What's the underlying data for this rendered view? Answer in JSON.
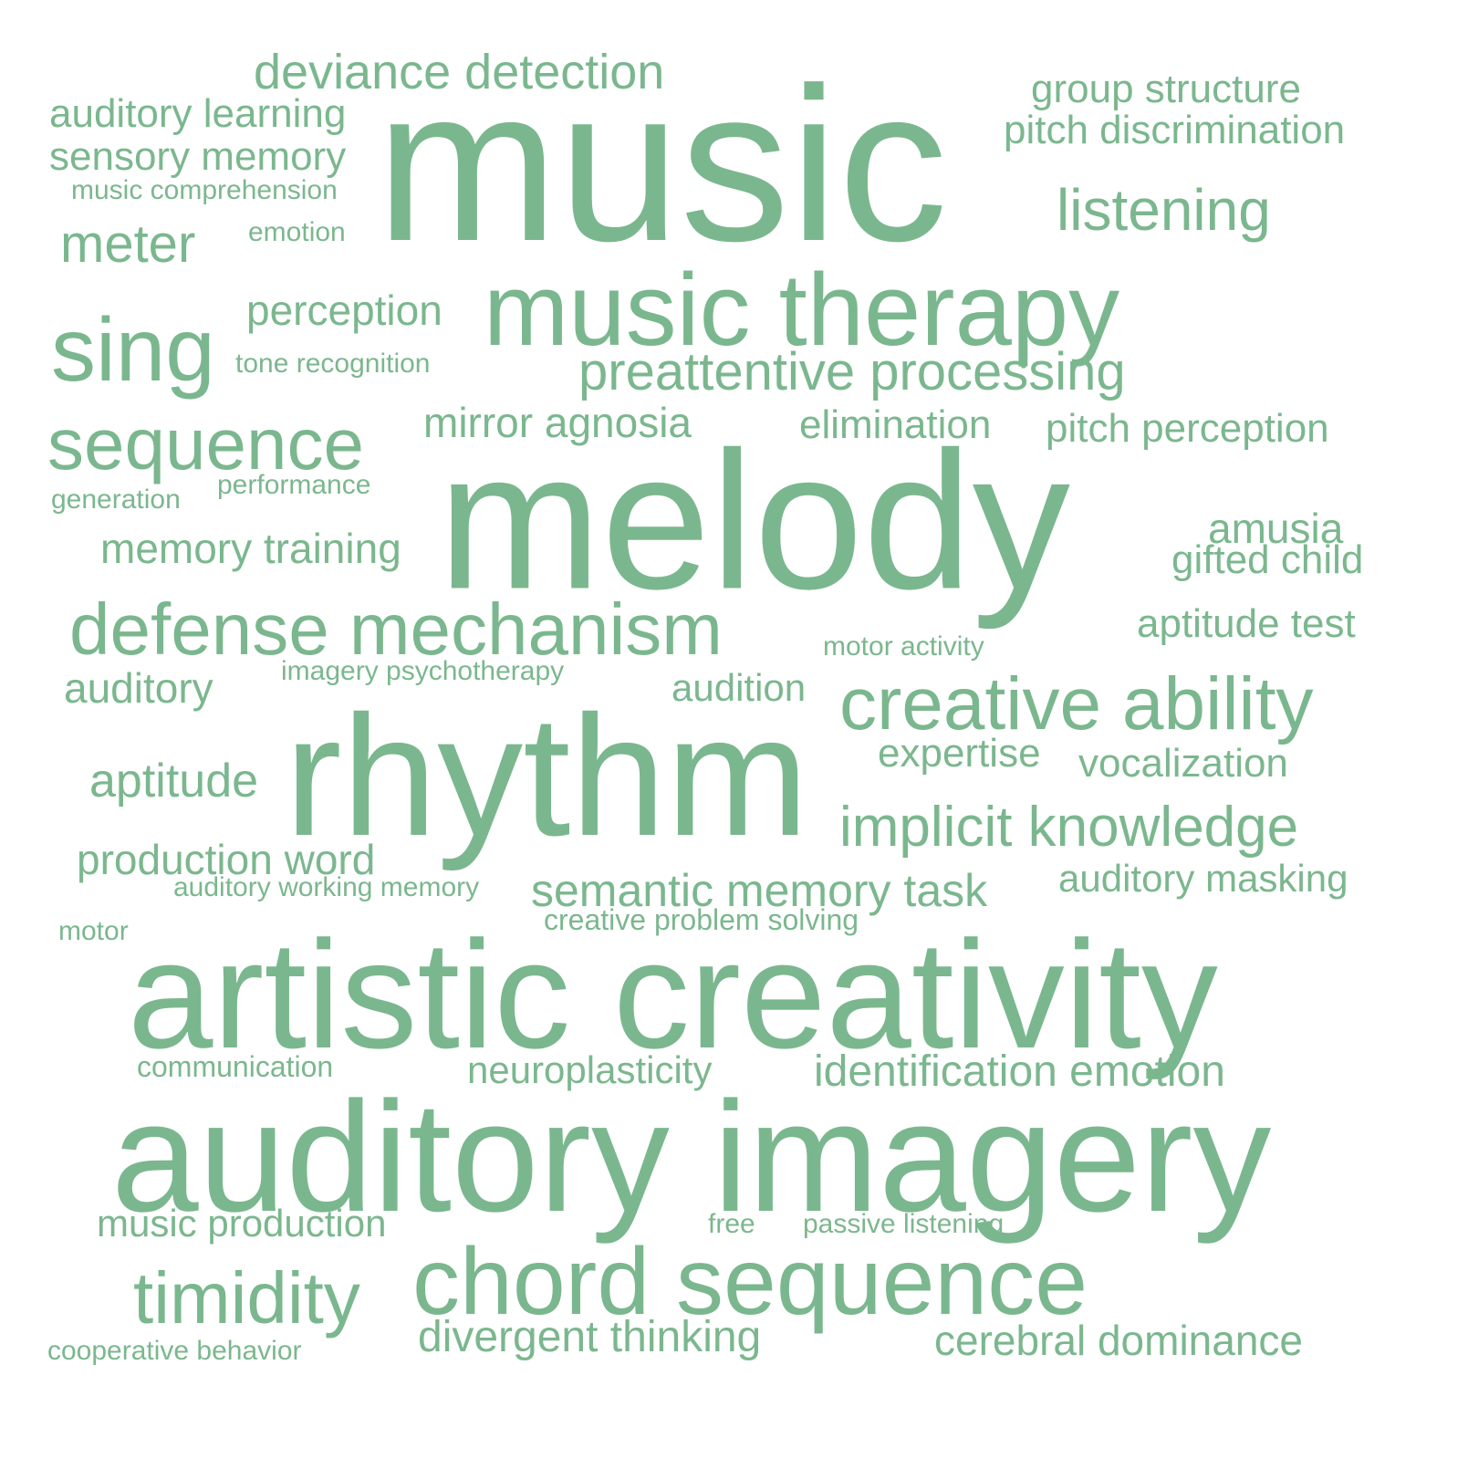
{
  "color": "#7bb78e",
  "words": [
    "music",
    "melody",
    "rhythm",
    "artistic creativity",
    "auditory imagery",
    "music therapy",
    "chord sequence",
    "defense mechanism",
    "creative ability",
    "implicit knowledge",
    "sequence",
    "sing",
    "timidity",
    "preattentive processing",
    "deviance detection",
    "identification emotion",
    "semantic memory task",
    "listening",
    "divergent thinking",
    "cerebral dominance",
    "meter",
    "aptitude",
    "group structure",
    "pitch discrimination",
    "auditory learning",
    "sensory memory",
    "perception",
    "mirror agnosia",
    "elimination",
    "pitch perception",
    "memory training",
    "amusia",
    "gifted child",
    "aptitude test",
    "auditory",
    "audition",
    "expertise",
    "vocalization",
    "production word",
    "auditory masking",
    "neuroplasticity",
    "music production",
    "music comprehension",
    "emotion",
    "tone recognition",
    "generation",
    "performance",
    "motor activity",
    "imagery psychotherapy",
    "auditory working memory",
    "creative problem solving",
    "motor",
    "communication",
    "free",
    "passive listening",
    "cooperative behavior"
  ]
}
